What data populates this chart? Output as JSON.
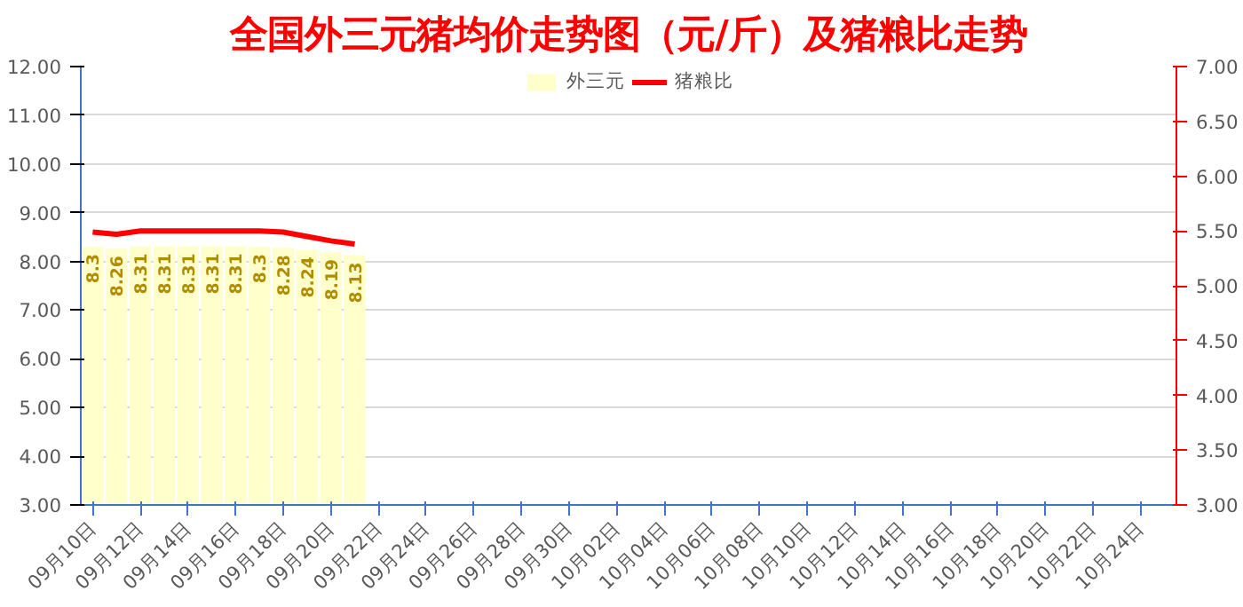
{
  "chart_data": {
    "type": "bar",
    "title": "全国外三元猪均价走势图（元/斤）及猪粮比走势",
    "categories": [
      "09月10日",
      null,
      "09月12日",
      null,
      "09月14日",
      null,
      "09月16日",
      null,
      "09月18日",
      null,
      "09月20日",
      null,
      "09月22日",
      null,
      "09月24日",
      null,
      "09月26日",
      null,
      "09月28日",
      null,
      "09月30日",
      null,
      "10月02日",
      null,
      "10月04日",
      null,
      "10月06日",
      null,
      "10月08日",
      null,
      "10月10日",
      null,
      "10月12日",
      null,
      "10月14日",
      null,
      "10月16日",
      null,
      "10月18日",
      null,
      "10月20日",
      null,
      "10月22日",
      null,
      "10月24日",
      null
    ],
    "series": [
      {
        "name": "外三元",
        "color": "#ffffcc",
        "values": [
          8.3,
          8.26,
          8.31,
          8.31,
          8.31,
          8.31,
          8.31,
          8.3,
          8.28,
          8.24,
          8.19,
          8.13,
          null,
          null,
          null,
          null,
          null,
          null,
          null,
          null,
          null,
          null,
          null,
          null,
          null,
          null,
          null,
          null,
          null,
          null,
          null,
          null,
          null,
          null,
          null,
          null,
          null,
          null,
          null,
          null,
          null,
          null,
          null,
          null,
          null,
          null
        ],
        "value_labels": [
          "8.3",
          "8.26",
          "8.31",
          "8.31",
          "8.31",
          "8.31",
          "8.31",
          "8.3",
          "8.28",
          "8.24",
          "8.19",
          "8.13",
          null,
          null,
          null,
          null,
          null,
          null,
          null,
          null,
          null,
          null,
          null,
          null,
          null,
          null,
          null,
          null,
          null,
          null,
          null,
          null,
          null,
          null,
          null,
          null,
          null,
          null,
          null,
          null,
          null,
          null,
          null,
          null,
          null,
          null
        ]
      },
      {
        "name": "猪粮比",
        "type": "line",
        "axis": "y2",
        "color": "#ff0000",
        "values": [
          5.49,
          5.47,
          5.5,
          5.5,
          5.5,
          5.5,
          5.5,
          5.5,
          5.49,
          5.45,
          5.41,
          5.38,
          null,
          null,
          null,
          null,
          null,
          null,
          null,
          null,
          null,
          null,
          null,
          null,
          null,
          null,
          null,
          null,
          null,
          null,
          null,
          null,
          null,
          null,
          null,
          null,
          null,
          null,
          null,
          null,
          null,
          null,
          null,
          null,
          null,
          null
        ]
      }
    ],
    "ylim": [
      3,
      12
    ],
    "yticks": [
      {
        "value": 3,
        "label": "3.00"
      },
      {
        "value": 4,
        "label": "4.00"
      },
      {
        "value": 5,
        "label": "5.00"
      },
      {
        "value": 6,
        "label": "6.00"
      },
      {
        "value": 7,
        "label": "7.00"
      },
      {
        "value": 8,
        "label": "8.00"
      },
      {
        "value": 9,
        "label": "9.00"
      },
      {
        "value": 10,
        "label": "10.00"
      },
      {
        "value": 11,
        "label": "11.00"
      },
      {
        "value": 12,
        "label": "12.00"
      }
    ],
    "y2lim": [
      3,
      7
    ],
    "y2ticks": [
      {
        "value": 3,
        "label": "3.00"
      },
      {
        "value": 3.5,
        "label": "3.50"
      },
      {
        "value": 4,
        "label": "4.00"
      },
      {
        "value": 4.5,
        "label": "4.50"
      },
      {
        "value": 5,
        "label": "5.00"
      },
      {
        "value": 5.5,
        "label": "5.50"
      },
      {
        "value": 6,
        "label": "6.00"
      },
      {
        "value": 6.5,
        "label": "6.50"
      },
      {
        "value": 7,
        "label": "7.00"
      }
    ],
    "grid": "y",
    "legend": "top"
  }
}
